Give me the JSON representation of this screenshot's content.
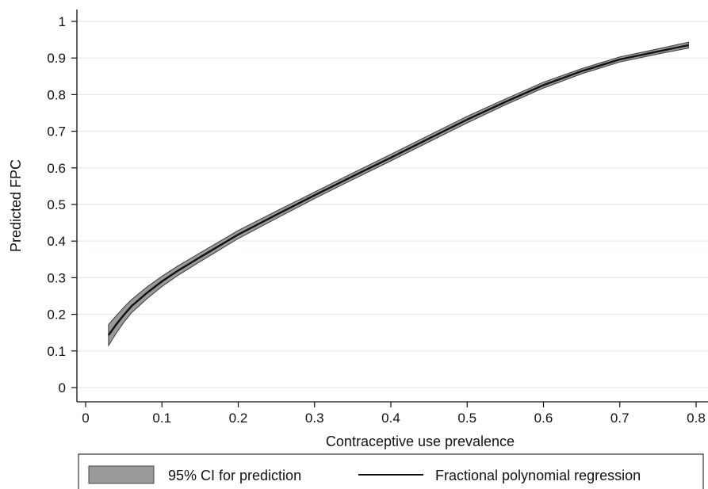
{
  "chart_data": {
    "type": "line",
    "xlabel": "Contraceptive use prevalence",
    "ylabel": "Predicted FPC",
    "xlim": [
      0,
      0.8
    ],
    "ylim": [
      0,
      1
    ],
    "x_ticks": [
      0,
      0.1,
      0.2,
      0.3,
      0.4,
      0.5,
      0.6,
      0.7,
      0.8
    ],
    "x_tick_labels": [
      "0",
      "0.1",
      "0.2",
      "0.3",
      "0.4",
      "0.5",
      "0.6",
      "0.7",
      "0.8"
    ],
    "y_ticks": [
      0,
      0.1,
      0.2,
      0.3,
      0.4,
      0.5,
      0.6,
      0.7,
      0.8,
      0.9,
      1
    ],
    "y_tick_labels": [
      "0",
      "0.1",
      "0.2",
      "0.3",
      "0.4",
      "0.5",
      "0.6",
      "0.7",
      "0.8",
      "0.9",
      "1"
    ],
    "grid": "horizontal",
    "legend_position": "bottom",
    "series": [
      {
        "name": "Fractional polynomial regression",
        "kind": "line",
        "color": "#111111",
        "x": [
          0.03,
          0.04,
          0.05,
          0.06,
          0.08,
          0.1,
          0.12,
          0.15,
          0.2,
          0.25,
          0.3,
          0.35,
          0.4,
          0.45,
          0.5,
          0.55,
          0.6,
          0.65,
          0.7,
          0.75,
          0.79
        ],
        "y": [
          0.143,
          0.172,
          0.198,
          0.222,
          0.258,
          0.29,
          0.318,
          0.356,
          0.418,
          0.472,
          0.525,
          0.577,
          0.628,
          0.68,
          0.732,
          0.78,
          0.826,
          0.864,
          0.896,
          0.918,
          0.935
        ]
      },
      {
        "name": "95% CI for prediction",
        "kind": "band",
        "color": "#9a9a9a",
        "x": [
          0.03,
          0.04,
          0.05,
          0.06,
          0.08,
          0.1,
          0.12,
          0.15,
          0.2,
          0.25,
          0.3,
          0.35,
          0.4,
          0.45,
          0.5,
          0.55,
          0.6,
          0.65,
          0.7,
          0.75,
          0.79
        ],
        "lower": [
          0.115,
          0.148,
          0.178,
          0.204,
          0.242,
          0.276,
          0.305,
          0.344,
          0.407,
          0.462,
          0.516,
          0.568,
          0.619,
          0.671,
          0.723,
          0.772,
          0.818,
          0.857,
          0.889,
          0.911,
          0.927
        ],
        "upper": [
          0.172,
          0.196,
          0.219,
          0.24,
          0.274,
          0.304,
          0.331,
          0.368,
          0.429,
          0.482,
          0.534,
          0.586,
          0.637,
          0.689,
          0.741,
          0.788,
          0.834,
          0.871,
          0.903,
          0.925,
          0.943
        ]
      }
    ],
    "legend": [
      {
        "label": "95% CI for prediction",
        "symbol": "band"
      },
      {
        "label": "Fractional polynomial regression",
        "symbol": "line"
      }
    ]
  }
}
